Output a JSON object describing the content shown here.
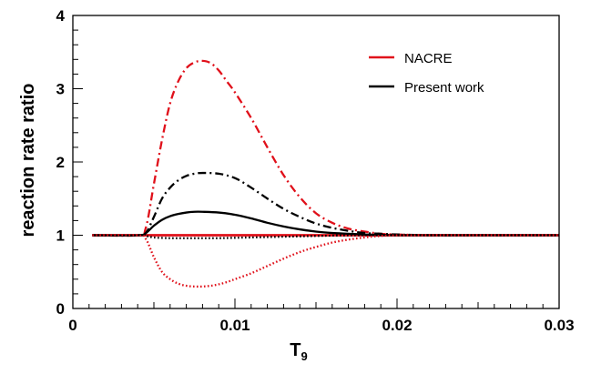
{
  "chart_data": {
    "type": "line",
    "title": "",
    "xlabel": "T",
    "xlabel_sub": "9",
    "ylabel": "reaction rate ratio",
    "xlim": [
      0,
      0.03
    ],
    "ylim": [
      0,
      4
    ],
    "grid": false,
    "legend_position": "top-right",
    "x_ticks": [
      {
        "value": 0,
        "label": "0"
      },
      {
        "value": 0.01,
        "label": "0.01"
      },
      {
        "value": 0.02,
        "label": "0.02"
      },
      {
        "value": 0.03,
        "label": "0.03"
      }
    ],
    "y_ticks": [
      {
        "value": 0,
        "label": "0"
      },
      {
        "value": 1,
        "label": "1"
      },
      {
        "value": 2,
        "label": "2"
      },
      {
        "value": 3,
        "label": "3"
      },
      {
        "value": 4,
        "label": "4"
      }
    ],
    "legend": [
      {
        "label": "NACRE",
        "color": "#e0101a"
      },
      {
        "label": "Present work",
        "color": "#000000"
      }
    ],
    "series": [
      {
        "name": "NACRE",
        "color": "#e0101a",
        "dash": "solid",
        "x": [
          0.0012,
          0.005,
          0.01,
          0.015,
          0.02,
          0.025,
          0.03
        ],
        "y": [
          1,
          1,
          1,
          1,
          1,
          1,
          1
        ]
      },
      {
        "color": "#e0101a",
        "dash": "dashdot",
        "x": [
          0.0012,
          0.004,
          0.0045,
          0.005,
          0.0055,
          0.006,
          0.0065,
          0.007,
          0.0075,
          0.008,
          0.0085,
          0.009,
          0.0095,
          0.01,
          0.011,
          0.012,
          0.013,
          0.014,
          0.015,
          0.016,
          0.017,
          0.018,
          0.019,
          0.02,
          0.021,
          0.022,
          0.025,
          0.03
        ],
        "y": [
          1,
          1,
          1.1,
          1.7,
          2.3,
          2.8,
          3.1,
          3.28,
          3.36,
          3.38,
          3.35,
          3.25,
          3.1,
          2.95,
          2.6,
          2.2,
          1.82,
          1.52,
          1.3,
          1.17,
          1.09,
          1.05,
          1.02,
          1.01,
          1.005,
          1,
          1,
          1
        ]
      },
      {
        "color": "#000000",
        "dash": "dashdot",
        "x": [
          0.0012,
          0.004,
          0.0045,
          0.005,
          0.0055,
          0.006,
          0.0065,
          0.007,
          0.0075,
          0.008,
          0.009,
          0.01,
          0.011,
          0.012,
          0.013,
          0.014,
          0.015,
          0.016,
          0.017,
          0.018,
          0.019,
          0.02,
          0.022,
          0.025,
          0.03
        ],
        "y": [
          1,
          1,
          1.03,
          1.25,
          1.5,
          1.65,
          1.75,
          1.81,
          1.84,
          1.85,
          1.84,
          1.78,
          1.65,
          1.5,
          1.36,
          1.25,
          1.16,
          1.1,
          1.06,
          1.03,
          1.02,
          1.01,
          1,
          1,
          1
        ]
      },
      {
        "name": "Present work",
        "color": "#000000",
        "dash": "solid",
        "x": [
          0.0012,
          0.004,
          0.0045,
          0.005,
          0.0055,
          0.006,
          0.0065,
          0.007,
          0.0075,
          0.008,
          0.009,
          0.01,
          0.011,
          0.012,
          0.013,
          0.014,
          0.015,
          0.016,
          0.017,
          0.018,
          0.019,
          0.02,
          0.022,
          0.025,
          0.03
        ],
        "y": [
          1,
          1,
          1.03,
          1.13,
          1.21,
          1.26,
          1.29,
          1.31,
          1.32,
          1.32,
          1.31,
          1.28,
          1.23,
          1.17,
          1.12,
          1.08,
          1.05,
          1.03,
          1.02,
          1.01,
          1.005,
          1,
          1,
          1,
          1
        ]
      },
      {
        "color": "#000000",
        "dash": "dotted",
        "x": [
          0.0012,
          0.004,
          0.0045,
          0.005,
          0.006,
          0.007,
          0.008,
          0.009,
          0.01,
          0.012,
          0.014,
          0.016,
          0.018,
          0.02,
          0.025,
          0.03
        ],
        "y": [
          1,
          1,
          0.99,
          0.97,
          0.96,
          0.96,
          0.96,
          0.96,
          0.965,
          0.975,
          0.985,
          0.995,
          1,
          1,
          1,
          1
        ]
      },
      {
        "color": "#e0101a",
        "dash": "dotted",
        "x": [
          0.0012,
          0.004,
          0.0045,
          0.005,
          0.0055,
          0.006,
          0.0065,
          0.007,
          0.0075,
          0.008,
          0.0085,
          0.009,
          0.0095,
          0.01,
          0.011,
          0.012,
          0.013,
          0.014,
          0.015,
          0.016,
          0.017,
          0.018,
          0.019,
          0.02,
          0.022,
          0.025,
          0.03
        ],
        "y": [
          1,
          1,
          0.95,
          0.7,
          0.5,
          0.4,
          0.34,
          0.31,
          0.3,
          0.3,
          0.31,
          0.33,
          0.36,
          0.4,
          0.48,
          0.58,
          0.68,
          0.77,
          0.84,
          0.9,
          0.94,
          0.97,
          0.99,
          1,
          1,
          1,
          1
        ]
      }
    ]
  }
}
